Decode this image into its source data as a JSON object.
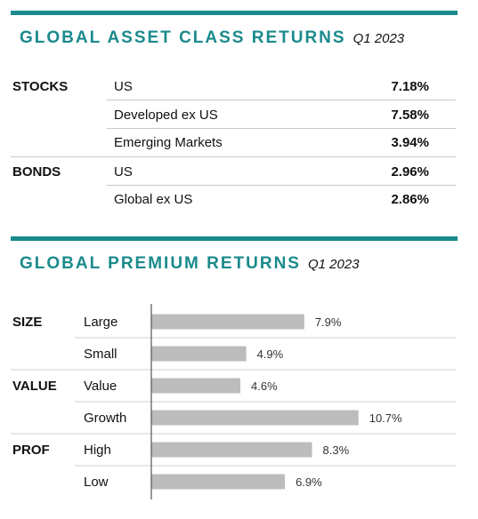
{
  "colors": {
    "accent": "#1b8a8c",
    "bar": "#bcbcbc",
    "axis": "#555555"
  },
  "asset_section": {
    "title": "GLOBAL ASSET CLASS RETURNS",
    "period": "Q1 2023",
    "groups": [
      {
        "label": "STOCKS",
        "rows": [
          {
            "label": "US",
            "value": "7.18%"
          },
          {
            "label": "Developed ex US",
            "value": "7.58%"
          },
          {
            "label": "Emerging Markets",
            "value": "3.94%"
          }
        ]
      },
      {
        "label": "BONDS",
        "rows": [
          {
            "label": "US",
            "value": "2.96%"
          },
          {
            "label": "Global ex US",
            "value": "2.86%"
          }
        ]
      }
    ]
  },
  "premium_section": {
    "title": "GLOBAL PREMIUM RETURNS",
    "period": "Q1 2023"
  },
  "chart_data": {
    "type": "bar",
    "orientation": "horizontal",
    "groups": [
      "SIZE",
      "VALUE",
      "PROF"
    ],
    "categories": [
      "Large",
      "Small",
      "Value",
      "Growth",
      "High",
      "Low"
    ],
    "category_groups": [
      "SIZE",
      "SIZE",
      "VALUE",
      "VALUE",
      "PROF",
      "PROF"
    ],
    "values": [
      7.9,
      4.9,
      4.6,
      10.7,
      8.3,
      6.9
    ],
    "value_labels": [
      "7.9%",
      "4.9%",
      "4.6%",
      "10.7%",
      "8.3%",
      "6.9%"
    ],
    "xlim": [
      0,
      12
    ],
    "grid": false
  }
}
